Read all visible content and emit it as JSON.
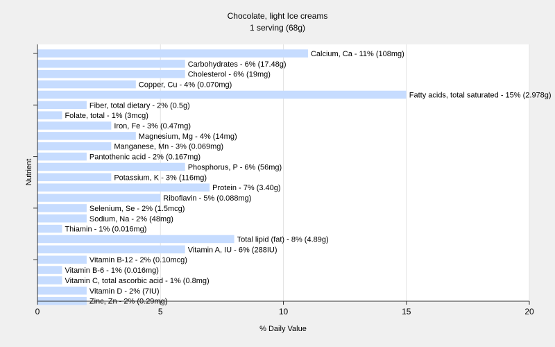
{
  "chart_data": {
    "type": "bar",
    "orientation": "horizontal",
    "title": "Chocolate, light Ice creams",
    "subtitle": "1 serving (68g)",
    "xlabel": "% Daily Value",
    "ylabel": "Nutrient",
    "xlim": [
      0,
      20
    ],
    "xticks": [
      "0",
      "5",
      "10",
      "15",
      "20"
    ],
    "grid": true,
    "bar_color": "#c6dcff",
    "categories": [
      "Calcium, Ca",
      "Carbohydrates",
      "Cholesterol",
      "Copper, Cu",
      "Fatty acids, total saturated",
      "Fiber, total dietary",
      "Folate, total",
      "Iron, Fe",
      "Magnesium, Mg",
      "Manganese, Mn",
      "Pantothenic acid",
      "Phosphorus, P",
      "Potassium, K",
      "Protein",
      "Riboflavin",
      "Selenium, Se",
      "Sodium, Na",
      "Thiamin",
      "Total lipid (fat)",
      "Vitamin A, IU",
      "Vitamin B-12",
      "Vitamin B-6",
      "Vitamin C, total ascorbic acid",
      "Vitamin D",
      "Zinc, Zn"
    ],
    "values": [
      11,
      6,
      6,
      4,
      15,
      2,
      1,
      3,
      4,
      3,
      2,
      6,
      3,
      7,
      5,
      2,
      2,
      1,
      8,
      6,
      2,
      1,
      1,
      2,
      2
    ],
    "labels": [
      "Calcium, Ca - 11% (108mg)",
      "Carbohydrates - 6% (17.48g)",
      "Cholesterol - 6% (19mg)",
      "Copper, Cu - 4% (0.070mg)",
      "Fatty acids, total saturated - 15% (2.978g)",
      "Fiber, total dietary - 2% (0.5g)",
      "Folate, total - 1% (3mcg)",
      "Iron, Fe - 3% (0.47mg)",
      "Magnesium, Mg - 4% (14mg)",
      "Manganese, Mn - 3% (0.069mg)",
      "Pantothenic acid - 2% (0.167mg)",
      "Phosphorus, P - 6% (56mg)",
      "Potassium, K - 3% (116mg)",
      "Protein - 7% (3.40g)",
      "Riboflavin - 5% (0.088mg)",
      "Selenium, Se - 2% (1.5mcg)",
      "Sodium, Na - 2% (48mg)",
      "Thiamin - 1% (0.016mg)",
      "Total lipid (fat) - 8% (4.89g)",
      "Vitamin A, IU - 6% (288IU)",
      "Vitamin B-12 - 2% (0.10mcg)",
      "Vitamin B-6 - 1% (0.016mg)",
      "Vitamin C, total ascorbic acid - 1% (0.8mg)",
      "Vitamin D - 2% (7IU)",
      "Zinc, Zn - 2% (0.29mg)"
    ]
  }
}
